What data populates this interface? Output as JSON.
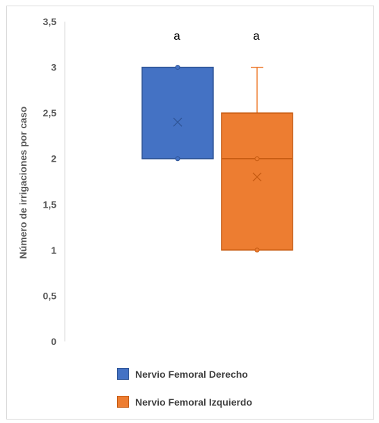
{
  "chart_data": {
    "type": "boxplot",
    "ylabel": "Número de irrigaciones por caso",
    "xlabel": "",
    "ylim": [
      0,
      3.5
    ],
    "yticks": [
      "0",
      "0,5",
      "1",
      "1,5",
      "2",
      "2,5",
      "3",
      "3,5"
    ],
    "grid": false,
    "legend_position": "bottom",
    "series": [
      {
        "name": "Nervio Femoral Derecho",
        "color": "#4472C4",
        "border": "#2F5597",
        "min": 2,
        "q1": 2,
        "median": 2,
        "q3": 3,
        "max": 3,
        "mean": 2.4,
        "points": [
          2,
          3
        ],
        "annotation": "a"
      },
      {
        "name": "Nervio Femoral Izquierdo",
        "color": "#ED7D31",
        "border": "#C55A11",
        "min": 1,
        "q1": 1,
        "median": 2,
        "q3": 2.5,
        "max": 3,
        "mean": 1.8,
        "points": [
          1,
          2
        ],
        "annotation": "a"
      }
    ]
  }
}
